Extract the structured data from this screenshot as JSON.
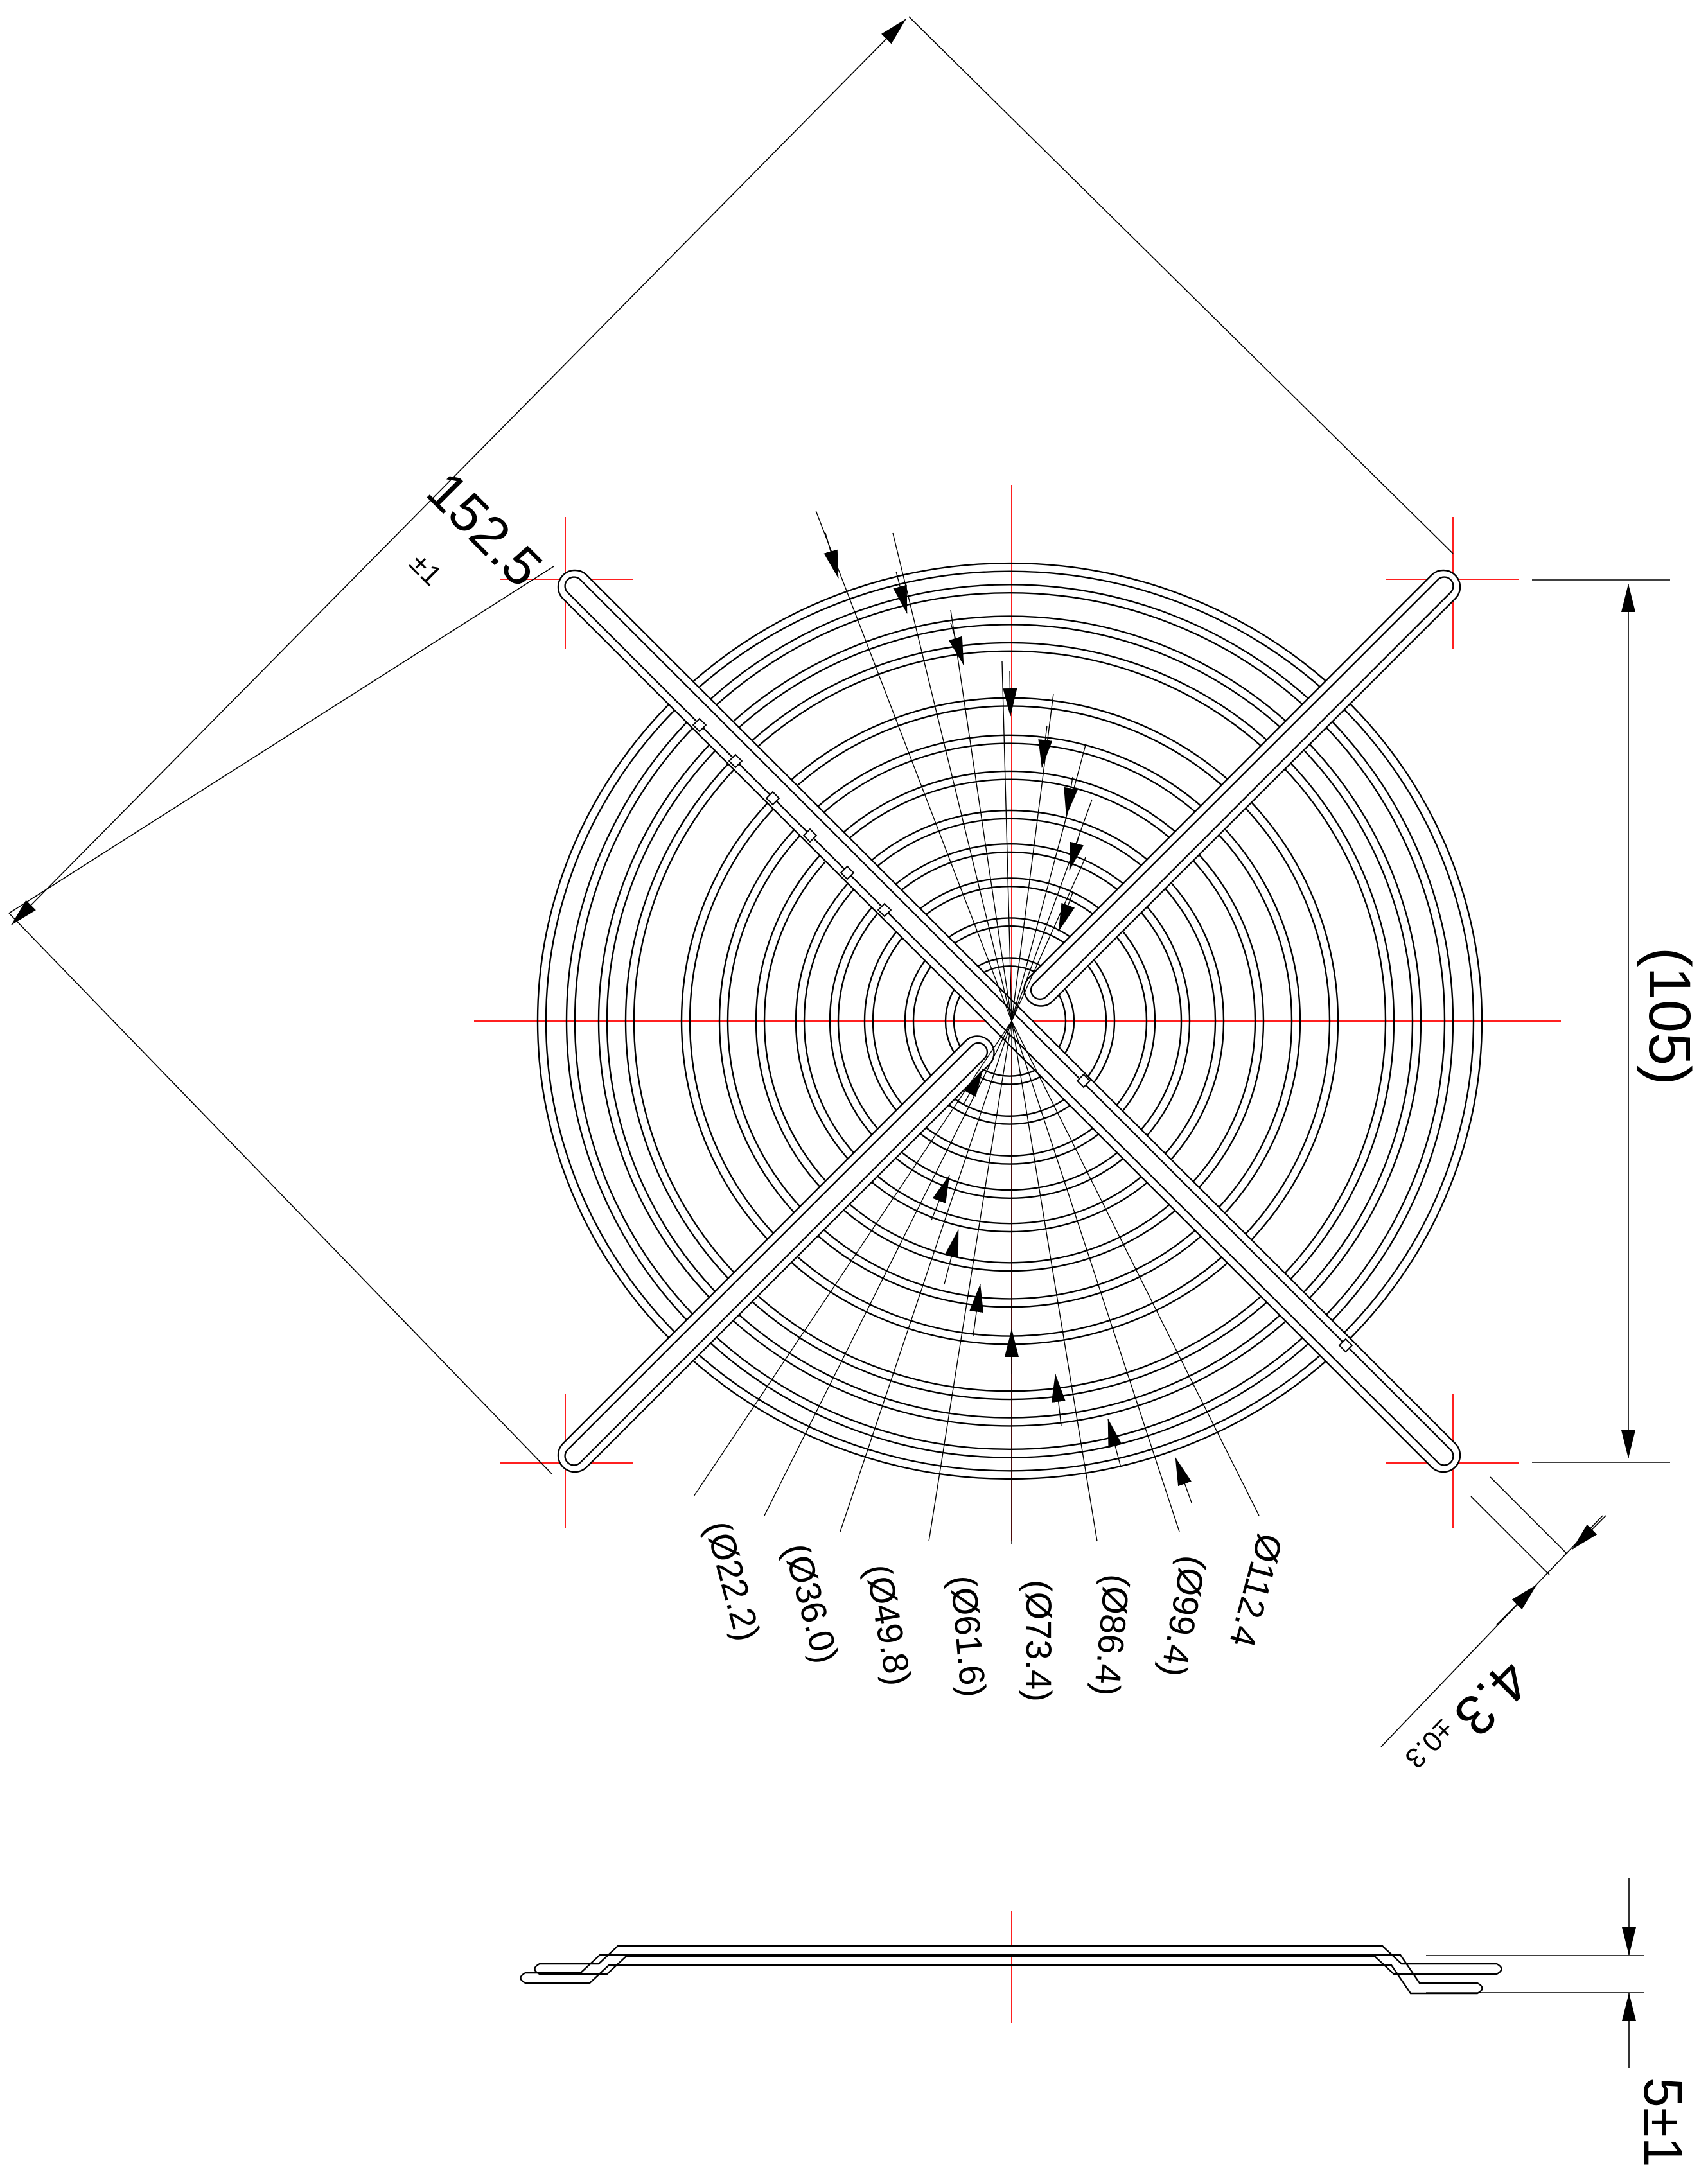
{
  "colors": {
    "line": "#000000",
    "centerline": "#ff2020",
    "dimension": "#000000"
  },
  "dimensions": {
    "diagonal_mount": {
      "value": "152.5",
      "tolerance": "±1"
    },
    "hole_spacing": {
      "value": "(105)"
    },
    "slot_width": {
      "value": "4.3",
      "tolerance": "±0.3"
    },
    "thickness": {
      "value": "5±1"
    },
    "ring_diameters": [
      {
        "label": "(Ø22.2)"
      },
      {
        "label": "(Ø36.0)"
      },
      {
        "label": "(Ø49.8)"
      },
      {
        "label": "(Ø61.6)"
      },
      {
        "label": "(Ø73.4)"
      },
      {
        "label": "(Ø86.4)"
      },
      {
        "label": "(Ø99.4)"
      },
      {
        "label": "Ø112.4"
      }
    ]
  }
}
